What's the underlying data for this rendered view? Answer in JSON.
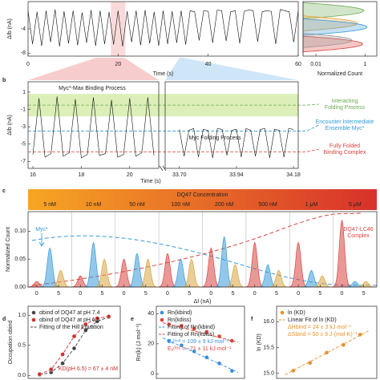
{
  "chart_data": [
    {
      "type": "line",
      "ylabel": "ΔIb (nA)",
      "xlabel": "Time (s)",
      "color": "#111",
      "xlim": [
        0,
        60
      ],
      "xticks": [
        0,
        20,
        40,
        60
      ],
      "ylim": [
        -8.5,
        0.5
      ],
      "yticks": [
        -8,
        -4
      ],
      "x": [
        0,
        1,
        2,
        3,
        4,
        5,
        6,
        7,
        8,
        9,
        10,
        11,
        12,
        13,
        14,
        15,
        16,
        17,
        18,
        19,
        20,
        21,
        22,
        23,
        24,
        25,
        26,
        27,
        28,
        29,
        30,
        31,
        32,
        33,
        34,
        35,
        36,
        37,
        38,
        39,
        40,
        41,
        42,
        43,
        44,
        45,
        46,
        47,
        48,
        49,
        50,
        51,
        52,
        53,
        54,
        55,
        56,
        57,
        58,
        59,
        60
      ],
      "values": [
        -1,
        -6.5,
        -1.2,
        -6.8,
        -1,
        -6.2,
        -0.8,
        -6.9,
        -1.1,
        -6.4,
        -1,
        -6.7,
        -1.3,
        -6.3,
        -0.9,
        -6.8,
        -1,
        -6.5,
        -1.2,
        -6.6,
        -1,
        -6.9,
        -1.1,
        -6.2,
        -1,
        -6.7,
        -0.9,
        -6.4,
        -1.2,
        -6.8,
        -1,
        -6.5,
        -1.1,
        -6.3,
        -1,
        -6.6,
        -1,
        -1.2,
        -5.9,
        -1,
        -1.1,
        -6.3,
        -0.9,
        -1,
        -6,
        -1.2,
        -1,
        -6.4,
        -1.1,
        -0.9,
        -1,
        -6.1,
        -1.2,
        -1,
        -1.1,
        -6.5,
        -0.8,
        -1,
        -1.2,
        -6.2,
        -1
      ]
    },
    {
      "type": "density",
      "xlabel": "Normalized Count",
      "log_x": true,
      "xlim": [
        0.003,
        3
      ],
      "xticks": [
        {
          "value": 0.01,
          "label": "0.01"
        },
        1
      ],
      "ylim": [
        -8.5,
        0.5
      ],
      "series": [
        {
          "color": "#6aa84f",
          "center": -1,
          "height": 0.9
        },
        {
          "color": "#e8a33d",
          "center": -3.1,
          "height": 0.5
        },
        {
          "color": "#3a9ad9",
          "center": -3.7,
          "height": 1.2
        },
        {
          "color": "#d9443f",
          "center": -6.5,
          "height": 0.8
        },
        {
          "color": "#999999",
          "center": -5.9,
          "height": 0.3
        }
      ]
    },
    {
      "type": "broken",
      "panel_label": "b",
      "ylabel": "ΔIb (nA)",
      "xlabel": "Time (s)",
      "ylim": [
        -7.8,
        2.2
      ],
      "yticks": [
        1,
        -1,
        -3,
        -5,
        -7
      ],
      "band": [
        -1.8,
        0.8
      ],
      "band_color": "#dcefb8",
      "process_left": "Myc*-Max Binding Process",
      "process_right": "Myc Folding Process",
      "panels": [
        {
          "xlim": [
            15.8,
            21.2
          ],
          "xticks": [
            16,
            18,
            20
          ],
          "x": [
            16,
            16.25,
            16.5,
            16.75,
            17,
            17.25,
            17.5,
            17.75,
            18,
            18.25,
            18.5,
            18.75,
            19,
            19.25,
            19.5,
            19.75,
            20,
            20.25,
            20.5,
            20.75,
            21
          ],
          "values": [
            -6.2,
            0.3,
            -6.5,
            -6.1,
            0.5,
            -6.4,
            -6.0,
            0.2,
            -6.6,
            -6.2,
            0.4,
            -6.3,
            -6.1,
            0.1,
            -6.5,
            -6.2,
            0.3,
            -6.4,
            -6.0,
            0.4,
            -6.3
          ]
        },
        {
          "xlim": [
            33.64,
            34.2
          ],
          "xticks": [
            {
              "value": 33.7,
              "label": "33.70"
            },
            33.94,
            34.18
          ],
          "x": [
            33.7,
            33.72,
            33.74,
            33.76,
            33.78,
            33.8,
            33.82,
            33.84,
            33.86,
            33.88,
            33.9,
            33.92,
            33.94,
            33.96,
            33.98,
            34,
            34.02,
            34.04,
            34.06,
            34.08,
            34.1,
            34.12,
            34.14,
            34.16,
            34.18
          ],
          "values": [
            -3.3,
            -6.4,
            -3.4,
            -3.2,
            -6.5,
            -3.3,
            -3.4,
            -6.6,
            -3.2,
            -3.3,
            -6.3,
            -3.4,
            -3.3,
            -6.5,
            -3.2,
            -3.4,
            -6.4,
            -3.3,
            -3.2,
            -6.6,
            -3.3,
            -3.4,
            -6.5,
            -3.2,
            -3.3
          ]
        }
      ],
      "states": [
        {
          "label": [
            "Interacting",
            "Folding Process"
          ],
          "color": "#6aa84f",
          "value": -0.5
        },
        {
          "label": [
            "Encounter Intermediate",
            "Ensemble Myc*"
          ],
          "color": "#2f9bd6",
          "value": -3.5
        },
        {
          "label": [
            "Fully Folded",
            "Binding Complex"
          ],
          "color": "#d9443f",
          "value": -5.9
        }
      ]
    },
    {
      "type": "multi",
      "panel_label": "c",
      "title": "DQ47 Concentration",
      "ylabel": "Normalized Count",
      "xlabel": "ΔI (nA)",
      "concentrations": [
        "5 nM",
        "10 nM",
        "50 nM",
        "100 nM",
        "200 nM",
        "500 nM",
        "1 μM",
        "5 μM"
      ],
      "xlim": [
        -2,
        8
      ],
      "xticks": [
        0,
        5
      ],
      "ylim": [
        0,
        0.135
      ],
      "yticks": [
        {
          "value": 0,
          "label": "0.00"
        },
        {
          "value": 0.05,
          "label": "0.05"
        },
        {
          "value": 0.1,
          "label": "0.10"
        }
      ],
      "components": [
        {
          "color": "#d9443f",
          "center": 0
        },
        {
          "color": "#3a9ad9",
          "center": 3
        },
        {
          "color": "#d9a441",
          "center": 5.5
        }
      ],
      "heights": [
        [
          0.01,
          0.07,
          0.03
        ],
        [
          0.02,
          0.08,
          0.05
        ],
        [
          0.05,
          0.06,
          0.05
        ],
        [
          0.06,
          0.05,
          0.05
        ],
        [
          0.07,
          0.09,
          0.04
        ],
        [
          0.08,
          0.04,
          0.03
        ],
        [
          0.08,
          0.03,
          0.02
        ],
        [
          0.12,
          0.01,
          0.01
        ]
      ],
      "myc_label": "Myc*",
      "complex_label": [
        "DQ47-LC46",
        "Complex"
      ]
    },
    {
      "type": "scatter",
      "panel_label": "d",
      "ylabel": "Occupation αbind",
      "xlim": [
        0,
        8
      ],
      "ylim": [
        -0.05,
        1.15
      ],
      "yticks": [
        {
          "value": 0,
          "label": "0.0"
        },
        {
          "value": 0.5,
          "label": "0.5"
        },
        {
          "value": 1,
          "label": "1.0"
        }
      ],
      "series": [
        {
          "name": "αbind of DQ47 at pH 7.4",
          "kind": "points",
          "connect": true,
          "color": "#444444",
          "x": [
            1,
            2,
            3,
            4,
            5,
            6,
            7
          ],
          "values": [
            0.01,
            0.05,
            0.2,
            0.45,
            0.75,
            0.9,
            0.97
          ]
        },
        {
          "name": "αbind of DQ47 at pH 6.5",
          "kind": "points",
          "connect": true,
          "color": "#c9302c",
          "x": [
            1,
            2,
            3,
            4,
            5,
            6,
            7
          ],
          "values": [
            0.02,
            0.1,
            0.35,
            0.65,
            0.85,
            0.95,
            0.98
          ]
        }
      ],
      "fit_label": "Fitting of the Hill Equation",
      "notes": [
        "KD(pH 6.5) = 67 ± 4 nM"
      ]
    },
    {
      "type": "scatter",
      "panel_label": "e",
      "ylabel": "Rn(k) (J·mol⁻¹)",
      "xlim": [
        0,
        7
      ],
      "ylim": [
        -3,
        45
      ],
      "yticks": [
        0,
        20,
        40
      ],
      "series": [
        {
          "name": "Rn(kbind)",
          "kind": "points",
          "color": "#3a8fd8",
          "x": [
            1,
            2,
            3,
            4,
            5,
            6
          ],
          "values": [
            22,
            19,
            15,
            11,
            7,
            2
          ]
        },
        {
          "name": "Rn(kdiss)",
          "kind": "points",
          "color": "#d9443f",
          "x": [
            1,
            2,
            3,
            4,
            5,
            6
          ],
          "values": [
            33,
            32,
            30,
            28,
            25,
            22
          ]
        },
        {
          "name": "Fitting of Rn(kbind)",
          "kind": "fit",
          "color": "#3a8fd8",
          "x": [
            0.5,
            6.5
          ],
          "values": [
            24,
            1
          ]
        },
        {
          "name": "Fitting of Rn(kdiss)",
          "kind": "fit",
          "color": "#d9443f",
          "x": [
            0.5,
            6.5
          ],
          "values": [
            34,
            21
          ]
        }
      ],
      "notes": [
        "Eₐᵇⁱⁿᵈ = 109 ± 9 kJ·mol⁻¹",
        "Eₐᵈⁱˢˢ = −71 ± 11 kJ·mol⁻¹"
      ]
    },
    {
      "type": "scatter",
      "panel_label": "f",
      "ylabel": "ln (KD)",
      "xlim": [
        0,
        6
      ],
      "ylim": [
        14.9,
        16.3
      ],
      "yticks": [
        {
          "value": 15,
          "label": "15.0"
        },
        15.5,
        {
          "value": 16,
          "label": "16.0"
        }
      ],
      "series": [
        {
          "name": "ln (KD)",
          "kind": "points",
          "color": "#e8912d",
          "x": [
            1,
            2,
            3,
            4,
            5
          ],
          "values": [
            15.05,
            15.2,
            15.4,
            15.55,
            15.75
          ]
        },
        {
          "name": "Linear Fit of ln (KD)",
          "kind": "fit",
          "color": "#e8912d",
          "x": [
            0.5,
            5.5
          ],
          "values": [
            14.97,
            15.82
          ]
        }
      ],
      "notes": [
        "ΔHbind = 24 ± 3 kJ·mol⁻¹",
        "ΔSbind = 50 ± 9 J·(mol·K)⁻¹"
      ]
    }
  ]
}
